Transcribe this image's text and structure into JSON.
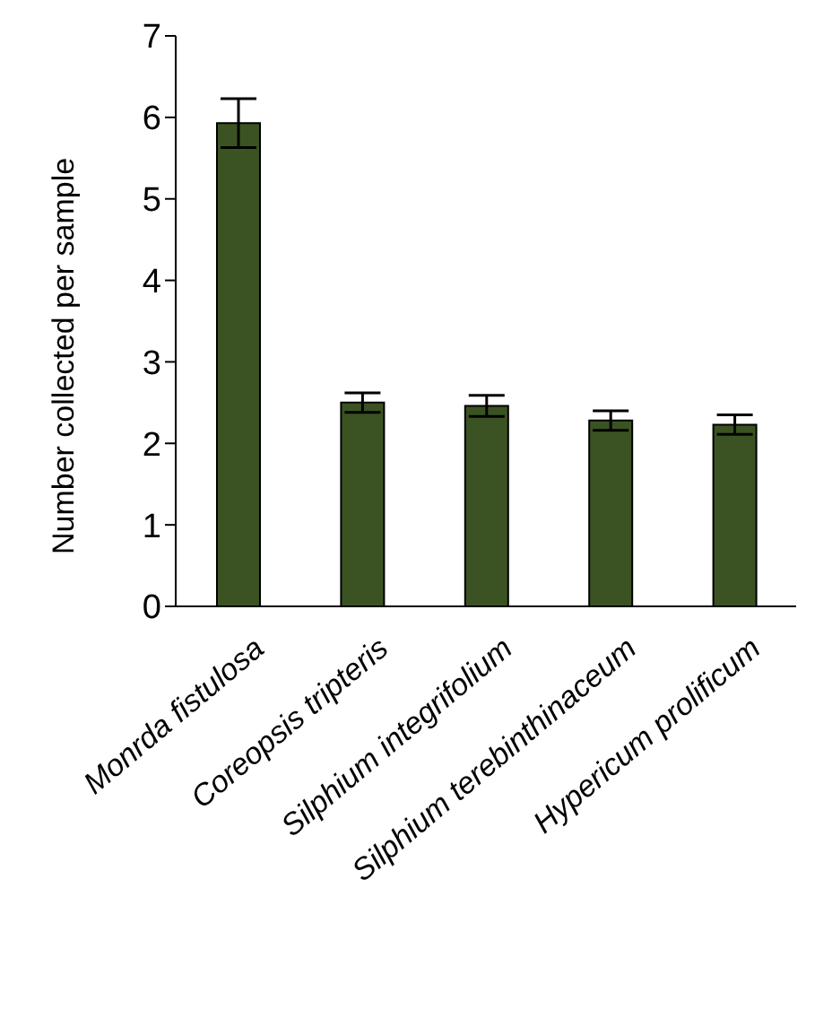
{
  "chart_data": {
    "type": "bar",
    "ylabel": "Number collected per sample",
    "categories": [
      "Monrda fistulosa",
      "Coreopsis tripteris",
      "Silphium integrifolium",
      "Silphium terebinthinaceum",
      "Hypericum prolificum"
    ],
    "values": [
      5.93,
      2.5,
      2.46,
      2.28,
      2.23
    ],
    "errors": [
      0.3,
      0.12,
      0.13,
      0.12,
      0.12
    ],
    "color": "#3b5323",
    "ylim": [
      0,
      7
    ],
    "yticks": [
      0,
      1,
      2,
      3,
      4,
      5,
      6,
      7
    ],
    "grid": false,
    "legend": false
  }
}
